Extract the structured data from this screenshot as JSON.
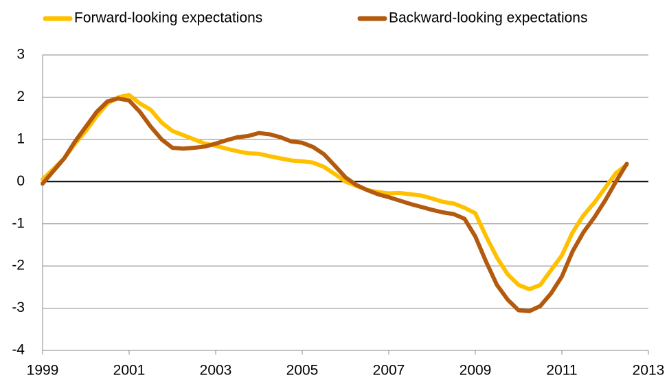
{
  "chart_data": {
    "type": "line",
    "x": [
      1999,
      1999.25,
      1999.5,
      1999.75,
      2000,
      2000.25,
      2000.5,
      2000.75,
      2001,
      2001.25,
      2001.5,
      2001.75,
      2002,
      2002.25,
      2002.5,
      2002.75,
      2003,
      2003.25,
      2003.5,
      2003.75,
      2004,
      2004.25,
      2004.5,
      2004.75,
      2005,
      2005.25,
      2005.5,
      2005.75,
      2006,
      2006.25,
      2006.5,
      2006.75,
      2007,
      2007.25,
      2007.5,
      2007.75,
      2008,
      2008.25,
      2008.5,
      2008.75,
      2009,
      2009.25,
      2009.5,
      2009.75,
      2010,
      2010.25,
      2010.5,
      2010.75,
      2011,
      2011.25,
      2011.5,
      2011.75,
      2012,
      2012.25,
      2012.5
    ],
    "series": [
      {
        "name": "Forward-looking expectations",
        "color": "#ffc000",
        "values": [
          0.05,
          0.3,
          0.55,
          0.9,
          1.2,
          1.55,
          1.85,
          2.0,
          2.05,
          1.85,
          1.7,
          1.4,
          1.2,
          1.1,
          1.0,
          0.9,
          0.85,
          0.78,
          0.72,
          0.67,
          0.66,
          0.6,
          0.55,
          0.5,
          0.48,
          0.45,
          0.35,
          0.18,
          0.0,
          -0.1,
          -0.2,
          -0.25,
          -0.28,
          -0.27,
          -0.3,
          -0.33,
          -0.4,
          -0.48,
          -0.52,
          -0.62,
          -0.75,
          -1.3,
          -1.8,
          -2.2,
          -2.45,
          -2.55,
          -2.45,
          -2.1,
          -1.75,
          -1.2,
          -0.8,
          -0.5,
          -0.15,
          0.2,
          0.4
        ]
      },
      {
        "name": "Backward-looking expectations",
        "color": "#b35a0e",
        "values": [
          -0.05,
          0.25,
          0.55,
          0.95,
          1.3,
          1.65,
          1.9,
          1.97,
          1.92,
          1.65,
          1.3,
          1.0,
          0.8,
          0.78,
          0.8,
          0.83,
          0.9,
          0.98,
          1.05,
          1.08,
          1.15,
          1.12,
          1.05,
          0.95,
          0.92,
          0.82,
          0.65,
          0.38,
          0.1,
          -0.08,
          -0.2,
          -0.3,
          -0.37,
          -0.45,
          -0.53,
          -0.6,
          -0.67,
          -0.73,
          -0.77,
          -0.88,
          -1.3,
          -1.9,
          -2.45,
          -2.8,
          -3.05,
          -3.07,
          -2.95,
          -2.65,
          -2.25,
          -1.65,
          -1.2,
          -0.85,
          -0.45,
          0.0,
          0.42
        ]
      }
    ],
    "xlim": [
      1999,
      2013
    ],
    "xticks": [
      1999,
      2001,
      2003,
      2005,
      2007,
      2009,
      2011,
      2013
    ],
    "ylim": [
      -4,
      3
    ],
    "yticks": [
      -4,
      -3,
      -2,
      -1,
      0,
      1,
      2,
      3
    ],
    "grid": true,
    "legend": "top"
  }
}
